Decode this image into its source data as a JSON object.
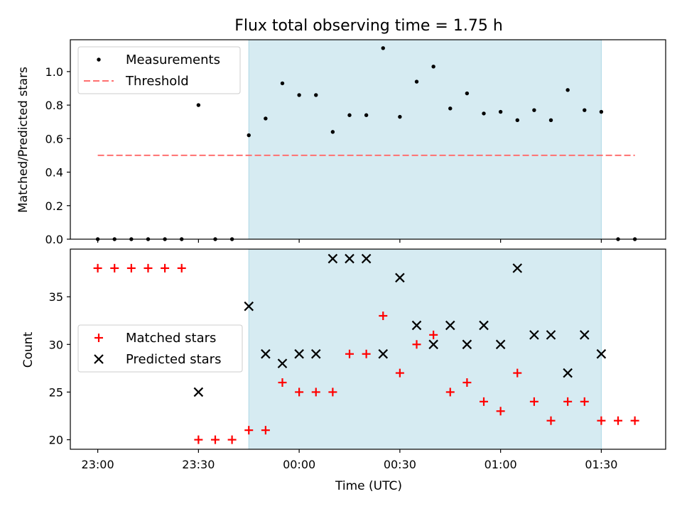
{
  "chart_data": [
    {
      "type": "scatter",
      "title": "Flux total observing time = 1.75 h",
      "xlabel": "",
      "ylabel": "Matched/Predicted stars",
      "ylim": [
        0,
        1.19
      ],
      "y_ticks": [
        "0.0",
        "0.2",
        "0.4",
        "0.6",
        "0.8",
        "1.0"
      ],
      "legend_position": "top-left",
      "observing_window": [
        "23:45",
        "01:30"
      ],
      "series": [
        {
          "name": "Measurements",
          "marker": "dot",
          "color": "#000000",
          "x": [
            "23:00",
            "23:05",
            "23:10",
            "23:15",
            "23:20",
            "23:25",
            "23:30",
            "23:35",
            "23:40",
            "23:45",
            "23:50",
            "23:55",
            "00:00",
            "00:05",
            "00:10",
            "00:15",
            "00:20",
            "00:25",
            "00:30",
            "00:35",
            "00:40",
            "00:45",
            "00:50",
            "00:55",
            "01:00",
            "01:05",
            "01:10",
            "01:15",
            "01:20",
            "01:25",
            "01:30",
            "01:35",
            "01:40"
          ],
          "y": [
            0,
            0,
            0,
            0,
            0,
            0,
            0.8,
            0,
            0,
            0.62,
            0.72,
            0.93,
            0.86,
            0.86,
            0.64,
            0.74,
            0.74,
            1.14,
            0.73,
            0.94,
            1.03,
            0.78,
            0.87,
            0.75,
            0.76,
            0.71,
            0.77,
            0.71,
            0.89,
            0.77,
            0.76,
            0,
            0
          ]
        },
        {
          "name": "Threshold",
          "marker": "dashed-line",
          "color": "#ff7070",
          "x": [
            "23:00",
            "01:40"
          ],
          "y": [
            0.5,
            0.5
          ]
        }
      ]
    },
    {
      "type": "scatter",
      "title": "",
      "xlabel": "Time (UTC)",
      "ylabel": "Count",
      "ylim": [
        19,
        40
      ],
      "y_ticks": [
        "20",
        "25",
        "30",
        "35"
      ],
      "x_ticks": [
        "23:00",
        "23:30",
        "00:00",
        "00:30",
        "01:00",
        "01:30"
      ],
      "legend_position": "center-left",
      "observing_window": [
        "23:45",
        "01:30"
      ],
      "series": [
        {
          "name": "Matched stars",
          "marker": "plus",
          "color": "#ff0000",
          "x": [
            "23:00",
            "23:05",
            "23:10",
            "23:15",
            "23:20",
            "23:25",
            "23:30",
            "23:35",
            "23:40",
            "23:45",
            "23:50",
            "23:55",
            "00:00",
            "00:05",
            "00:10",
            "00:15",
            "00:20",
            "00:25",
            "00:30",
            "00:35",
            "00:40",
            "00:45",
            "00:50",
            "00:55",
            "01:00",
            "01:05",
            "01:10",
            "01:15",
            "01:20",
            "01:25",
            "01:30",
            "01:35",
            "01:40"
          ],
          "y": [
            38,
            38,
            38,
            38,
            38,
            38,
            20,
            20,
            20,
            21,
            21,
            26,
            25,
            25,
            25,
            29,
            29,
            33,
            27,
            30,
            31,
            25,
            26,
            24,
            23,
            27,
            24,
            22,
            24,
            24,
            22,
            22,
            22
          ]
        },
        {
          "name": "Predicted stars",
          "marker": "x",
          "color": "#000000",
          "x": [
            "23:30",
            "23:45",
            "23:50",
            "23:55",
            "00:00",
            "00:05",
            "00:10",
            "00:15",
            "00:20",
            "00:25",
            "00:30",
            "00:35",
            "00:40",
            "00:45",
            "00:50",
            "00:55",
            "01:00",
            "01:05",
            "01:10",
            "01:15",
            "01:20",
            "01:25",
            "01:30"
          ],
          "y": [
            25,
            34,
            29,
            28,
            29,
            29,
            39,
            39,
            39,
            29,
            37,
            32,
            30,
            32,
            30,
            32,
            30,
            38,
            31,
            31,
            27,
            31,
            29
          ]
        }
      ]
    }
  ],
  "colors": {
    "window_fill": "#add8e6",
    "matched": "#ff0000",
    "threshold": "#ff7070",
    "black": "#000000"
  }
}
